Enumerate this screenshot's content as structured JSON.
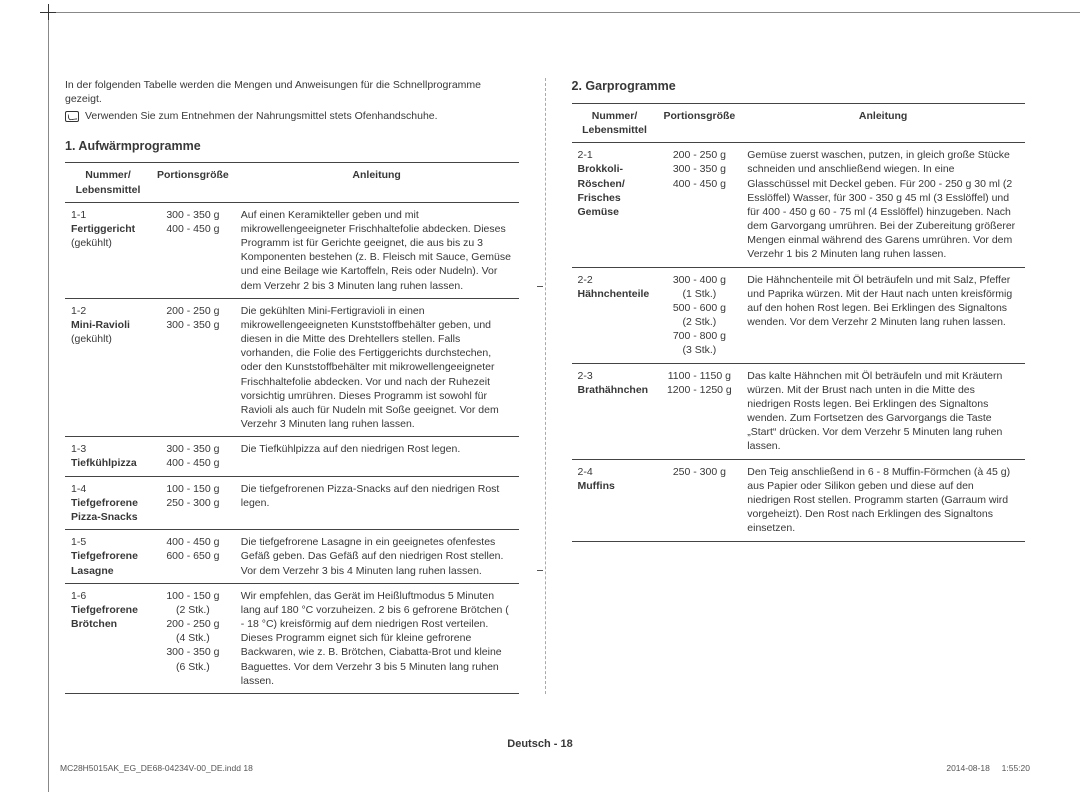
{
  "intro": "In der folgenden Tabelle werden die Mengen und Anweisungen für die Schnellprogramme gezeigt.",
  "hint": "Verwenden Sie zum Entnehmen der Nahrungsmittel stets Ofenhandschuhe.",
  "sections": {
    "left": {
      "title": "1. Aufwärmprogramme",
      "headers": {
        "a": "Nummer/\nLebensmittel",
        "b": "Portionsgröße",
        "c": "Anleitung"
      },
      "rows": [
        {
          "num": "1-1",
          "name": "Fertiggericht",
          "extra": "(gekühlt)",
          "size": "300 - 350 g\n400 - 450 g",
          "guide": "Auf einen Keramikteller geben und mit mikrowellengeeigneter Frischhaltefolie abdecken. Dieses Programm ist für Gerichte geeignet, die aus bis zu 3 Komponenten bestehen (z. B. Fleisch mit Sauce, Gemüse und eine Beilage wie Kartoffeln, Reis oder Nudeln). Vor dem Verzehr 2 bis 3 Minuten lang ruhen lassen."
        },
        {
          "num": "1-2",
          "name": "Mini-Ravioli",
          "extra": "(gekühlt)",
          "size": "200 - 250 g\n300 - 350 g",
          "guide": "Die gekühlten Mini-Fertigravioli in einen mikrowellengeeigneten Kunststoffbehälter geben, und diesen in die Mitte des Drehtellers stellen. Falls vorhanden, die Folie des Fertiggerichts durchstechen, oder den Kunststoffbehälter mit mikrowellengeeigneter Frischhaltefolie abdecken. Vor und nach der Ruhezeit vorsichtig umrühren. Dieses Programm ist sowohl für Ravioli als auch für Nudeln mit Soße geeignet. Vor dem Verzehr 3 Minuten lang ruhen lassen."
        },
        {
          "num": "1-3",
          "name": "Tiefkühlpizza",
          "extra": "",
          "size": "300 - 350 g\n400 - 450 g",
          "guide": "Die Tiefkühlpizza auf den niedrigen Rost legen."
        },
        {
          "num": "1-4",
          "name": "Tiefgefrorene Pizza-Snacks",
          "extra": "",
          "size": "100 - 150 g\n250 - 300 g",
          "guide": "Die tiefgefrorenen Pizza-Snacks auf den niedrigen Rost legen."
        },
        {
          "num": "1-5",
          "name": "Tiefgefrorene Lasagne",
          "extra": "",
          "size": "400 - 450 g\n600 - 650 g",
          "guide": "Die tiefgefrorene Lasagne in ein geeignetes ofenfestes Gefäß geben. Das Gefäß auf den niedrigen Rost stellen. Vor dem Verzehr 3 bis 4 Minuten lang ruhen lassen."
        },
        {
          "num": "1-6",
          "name": "Tiefgefrorene Brötchen",
          "extra": "",
          "size": "100 - 150 g\n(2 Stk.)\n200 - 250 g\n(4 Stk.)\n300 - 350 g\n(6 Stk.)",
          "guide": "Wir empfehlen, das Gerät im Heißluftmodus 5 Minuten lang auf 180 °C vorzuheizen. 2 bis 6 gefrorene Brötchen ( - 18 °C) kreisförmig auf dem niedrigen Rost verteilen. Dieses Programm eignet sich für kleine gefrorene Backwaren, wie z. B. Brötchen, Ciabatta-Brot und kleine Baguettes. Vor dem Verzehr 3 bis 5 Minuten lang ruhen lassen."
        }
      ]
    },
    "right": {
      "title": "2. Garprogramme",
      "headers": {
        "a": "Nummer/\nLebensmittel",
        "b": "Portionsgröße",
        "c": "Anleitung"
      },
      "rows": [
        {
          "num": "2-1",
          "name": "Brokkoli-Röschen/ Frisches Gemüse",
          "extra": "",
          "size": "200 - 250 g\n300 - 350 g\n400 - 450 g",
          "guide": "Gemüse zuerst waschen, putzen, in gleich große Stücke schneiden und anschließend wiegen. In eine Glasschüssel mit Deckel geben. Für 200 - 250 g 30 ml (2 Esslöffel) Wasser, für 300 - 350 g 45 ml (3 Esslöffel) und für 400 - 450 g 60 - 75 ml (4 Esslöffel) hinzugeben. Nach dem Garvorgang umrühren. Bei der Zubereitung größerer Mengen einmal während des Garens umrühren. Vor dem Verzehr 1 bis 2 Minuten lang ruhen lassen."
        },
        {
          "num": "2-2",
          "name": "Hähnchenteile",
          "extra": "",
          "size": "300 - 400 g\n(1 Stk.)\n500 - 600 g\n(2 Stk.)\n700 - 800 g\n(3 Stk.)",
          "guide": "Die Hähnchenteile mit Öl beträufeln und mit Salz, Pfeffer und Paprika würzen. Mit der Haut nach unten kreisförmig auf den hohen Rost legen. Bei Erklingen des Signaltons wenden. Vor dem Verzehr 2 Minuten lang ruhen lassen."
        },
        {
          "num": "2-3",
          "name": "Brathähnchen",
          "extra": "",
          "size": "1100 - 1150 g\n1200 - 1250 g",
          "guide": "Das kalte Hähnchen mit Öl beträufeln und mit Kräutern würzen. Mit der Brust nach unten in die Mitte des niedrigen Rosts legen. Bei Erklingen des Signaltons wenden. Zum Fortsetzen des Garvorgangs die Taste „Start“ drücken. Vor dem Verzehr 5 Minuten lang ruhen lassen."
        },
        {
          "num": "2-4",
          "name": "Muffins",
          "extra": "",
          "size": "250 - 300 g",
          "guide": "Den Teig anschließend in 6 - 8 Muffin-Förmchen (à 45 g) aus Papier oder Silikon geben und diese auf den niedrigen Rost stellen. Programm starten (Garraum wird vorgeheizt). Den Rost nach Erklingen des Signaltons einsetzen."
        }
      ]
    }
  },
  "footer": "Deutsch - 18",
  "footline_left": "MC28H5015AK_EG_DE68-04234V-00_DE.indd   18",
  "footline_right": "2014-08-18     1:55:20"
}
